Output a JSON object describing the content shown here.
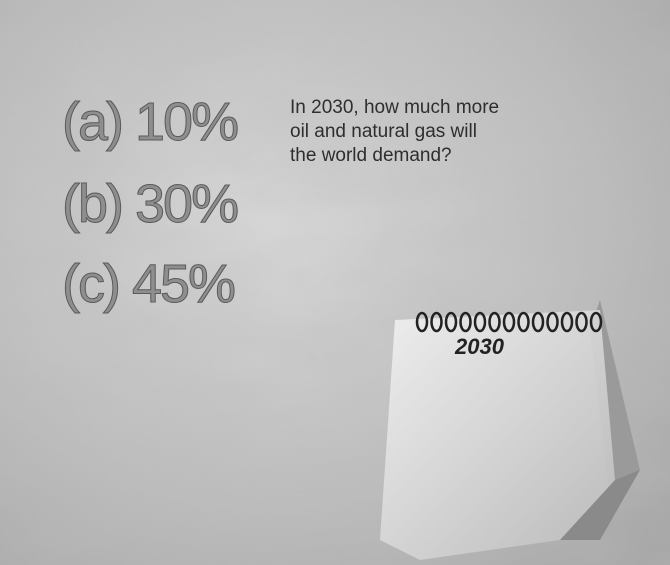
{
  "options": [
    "(a) 10%",
    "(b) 30%",
    "(c) 45%"
  ],
  "question": {
    "lines": [
      "In 2030, how much more",
      "oil and natural gas will",
      "the world demand?"
    ]
  },
  "calendar": {
    "year": "2030"
  }
}
